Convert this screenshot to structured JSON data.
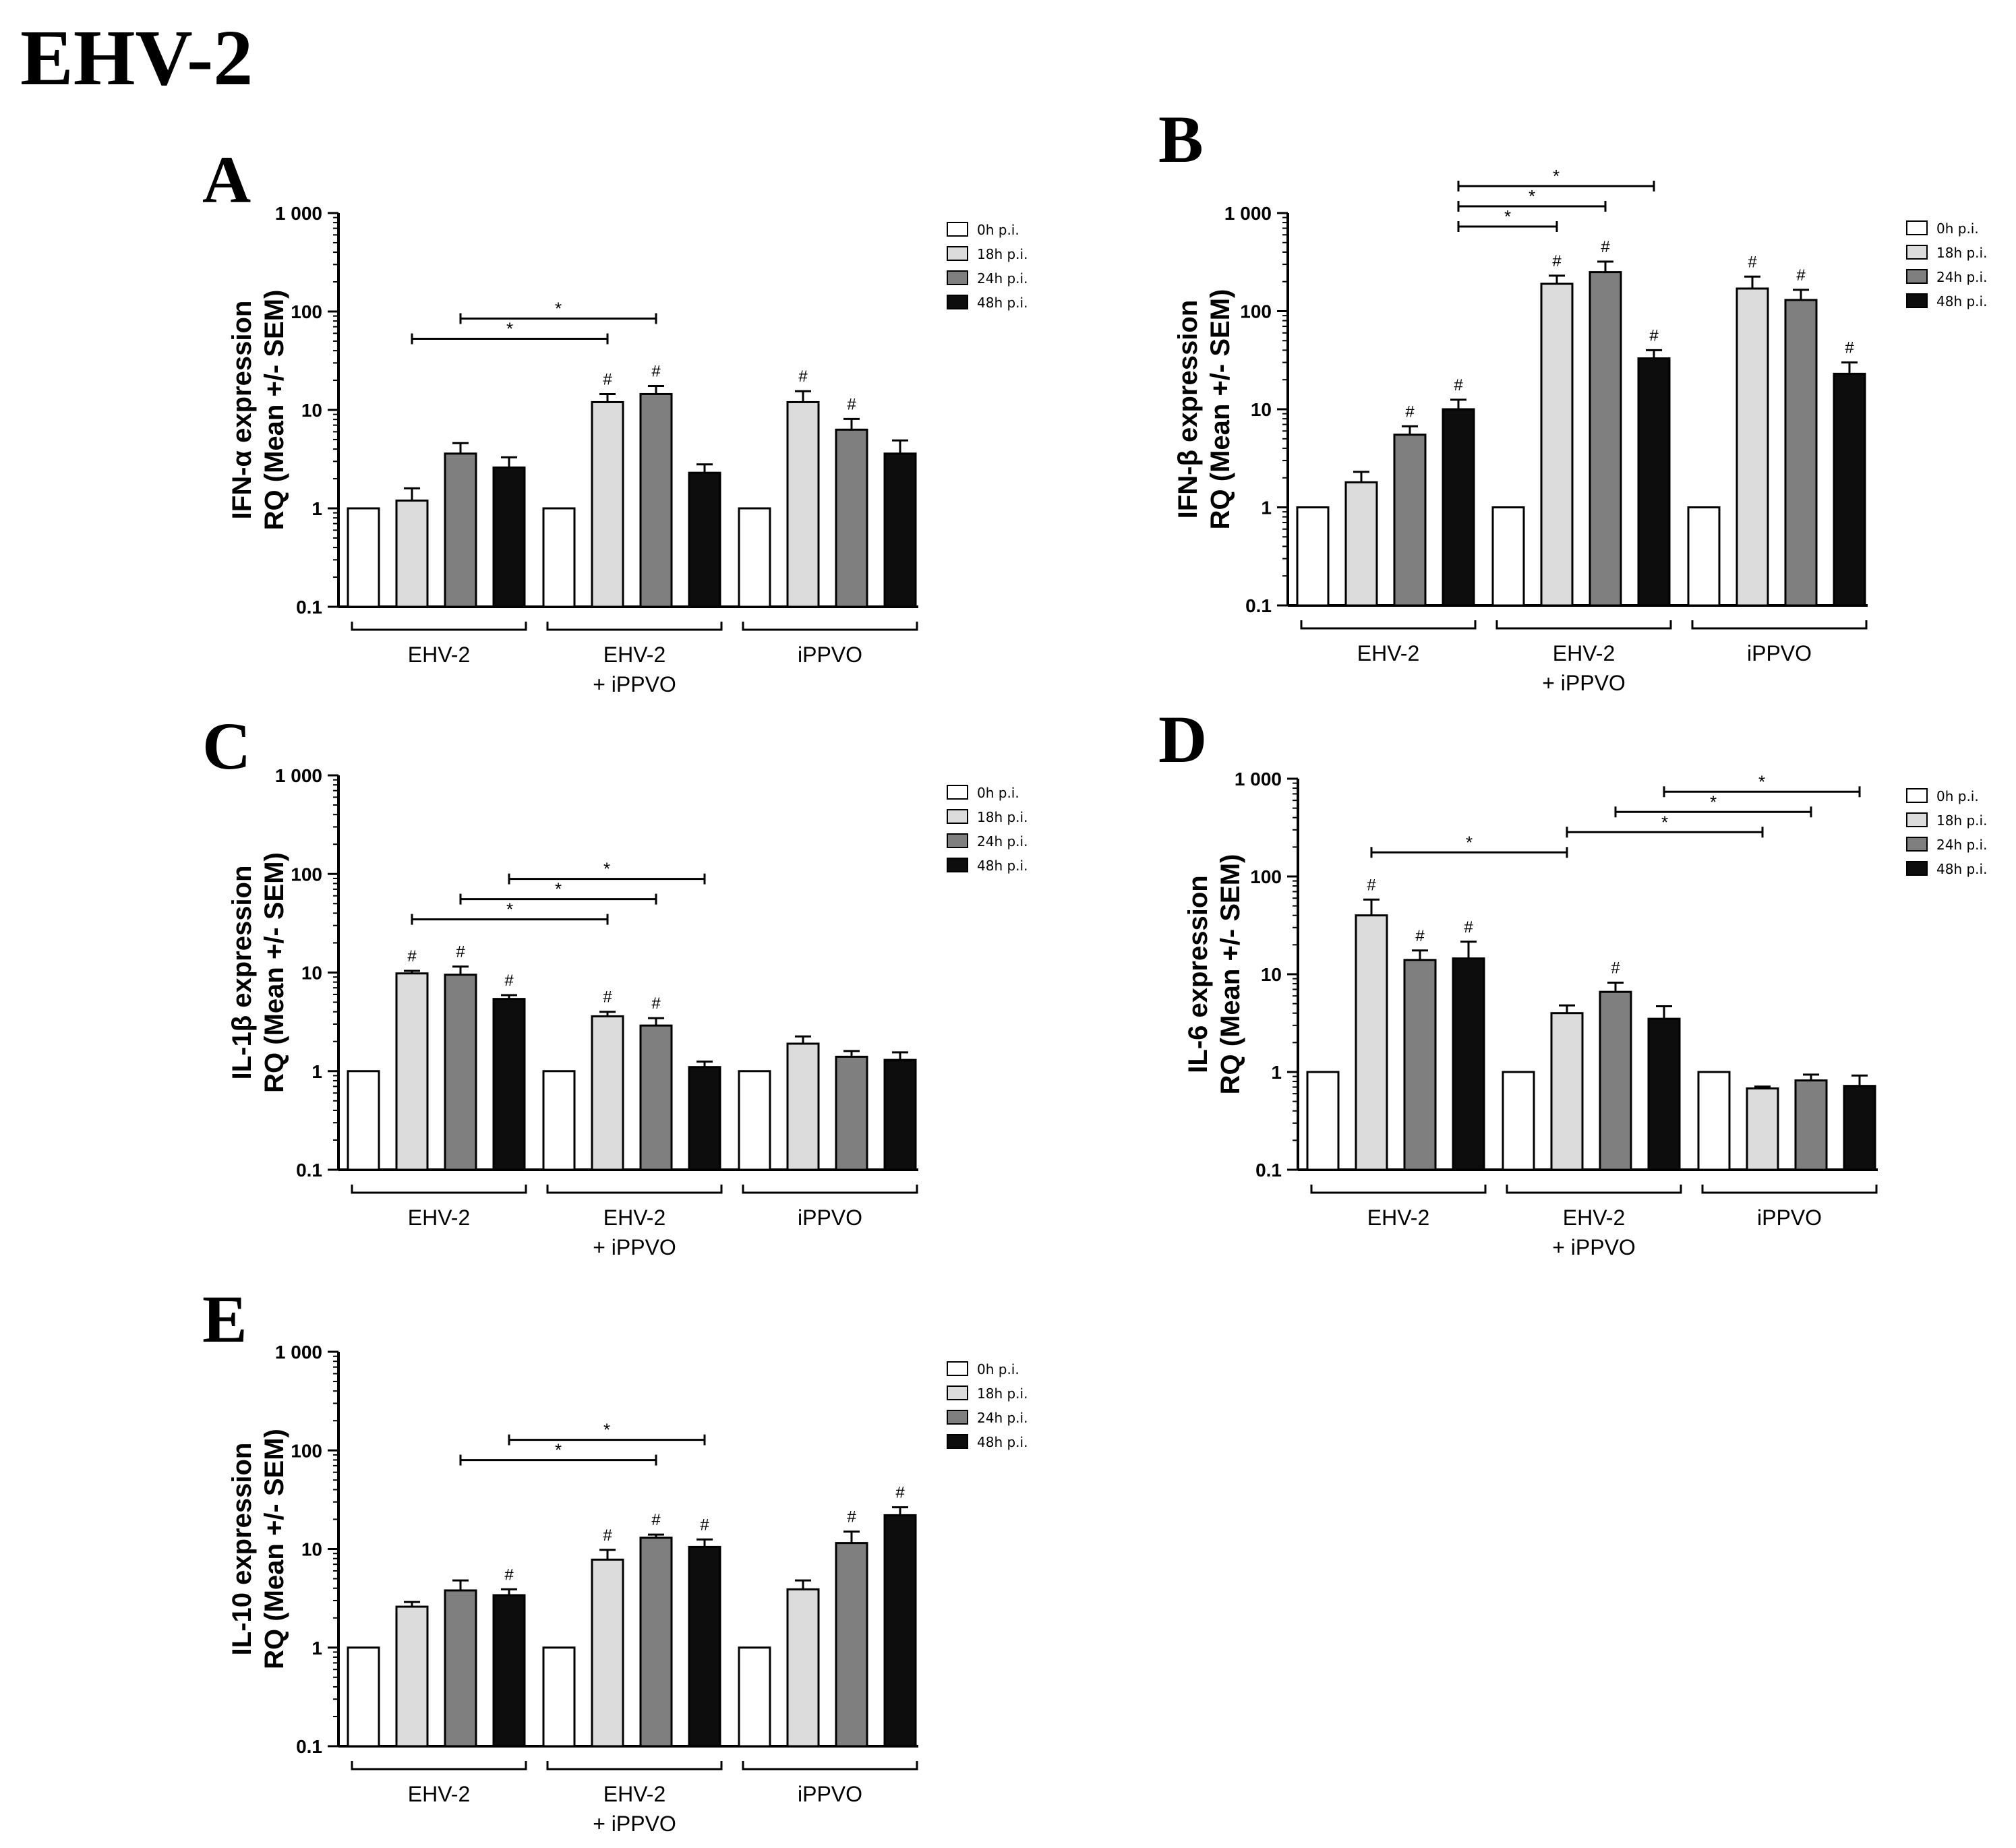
{
  "figure_title": "EHV-2",
  "chart_data": [
    {
      "type": "bar",
      "panel": "A",
      "ylabel": [
        "IFN-α expression",
        "RQ (Mean +/- SEM)"
      ],
      "yscale": "log",
      "ylim": [
        0.1,
        1000
      ],
      "yticks": [
        "0.1",
        "1",
        "10",
        "100",
        "1 000"
      ],
      "groups": [
        "EHV-2",
        "EHV-2\n+ iPPVO",
        "iPPVO"
      ],
      "series": [
        {
          "name": "0h p.i.",
          "color": "#ffffff",
          "values": [
            1,
            1,
            1
          ],
          "sem": [
            0,
            0,
            0
          ],
          "hash": [
            false,
            false,
            false
          ]
        },
        {
          "name": "18h p.i.",
          "color": "#dcdcdc",
          "values": [
            1.2,
            12,
            12
          ],
          "sem": [
            0.4,
            2.5,
            3.5
          ],
          "hash": [
            false,
            true,
            true
          ]
        },
        {
          "name": "24h p.i.",
          "color": "#7f7f7f",
          "values": [
            3.6,
            14.5,
            6.3
          ],
          "sem": [
            1.0,
            3.0,
            1.8
          ],
          "hash": [
            false,
            true,
            true
          ]
        },
        {
          "name": "48h p.i.",
          "color": "#0d0d0d",
          "values": [
            2.6,
            2.3,
            3.6
          ],
          "sem": [
            0.7,
            0.5,
            1.3
          ],
          "hash": [
            false,
            false,
            false
          ]
        }
      ],
      "comparisons": [
        {
          "from": [
            0,
            1
          ],
          "to": [
            1,
            1
          ],
          "label": "*"
        },
        {
          "from": [
            0,
            2
          ],
          "to": [
            1,
            2
          ],
          "label": "*"
        }
      ]
    },
    {
      "type": "bar",
      "panel": "B",
      "ylabel": [
        "IFN-β expression",
        "RQ (Mean +/- SEM)"
      ],
      "yscale": "log",
      "ylim": [
        0.1,
        1000
      ],
      "yticks": [
        "0.1",
        "1",
        "10",
        "100",
        "1 000"
      ],
      "groups": [
        "EHV-2",
        "EHV-2\n+ iPPVO",
        "iPPVO"
      ],
      "series": [
        {
          "name": "0h p.i.",
          "color": "#ffffff",
          "values": [
            1,
            1,
            1
          ],
          "sem": [
            0,
            0,
            0
          ],
          "hash": [
            false,
            false,
            false
          ]
        },
        {
          "name": "18h p.i.",
          "color": "#dcdcdc",
          "values": [
            1.8,
            190,
            170
          ],
          "sem": [
            0.5,
            40,
            55
          ],
          "hash": [
            false,
            true,
            true
          ]
        },
        {
          "name": "24h p.i.",
          "color": "#7f7f7f",
          "values": [
            5.5,
            250,
            130
          ],
          "sem": [
            1.2,
            70,
            35
          ],
          "hash": [
            true,
            true,
            true
          ]
        },
        {
          "name": "48h p.i.",
          "color": "#0d0d0d",
          "values": [
            10,
            33,
            23
          ],
          "sem": [
            2.5,
            7,
            7
          ],
          "hash": [
            true,
            true,
            true
          ]
        }
      ],
      "comparisons": [
        {
          "from": [
            0,
            3
          ],
          "to": [
            1,
            1
          ],
          "label": "*"
        },
        {
          "from": [
            0,
            3
          ],
          "to": [
            1,
            2
          ],
          "label": "*"
        },
        {
          "from": [
            0,
            3
          ],
          "to": [
            1,
            3
          ],
          "label": "*"
        }
      ]
    },
    {
      "type": "bar",
      "panel": "C",
      "ylabel": [
        "IL-1β expression",
        "RQ (Mean +/- SEM)"
      ],
      "yscale": "log",
      "ylim": [
        0.1,
        1000
      ],
      "yticks": [
        "0.1",
        "1",
        "10",
        "100",
        "1 000"
      ],
      "groups": [
        "EHV-2",
        "EHV-2\n+ iPPVO",
        "iPPVO"
      ],
      "series": [
        {
          "name": "0h p.i.",
          "color": "#ffffff",
          "values": [
            1,
            1,
            1
          ],
          "sem": [
            0,
            0,
            0
          ],
          "hash": [
            false,
            false,
            false
          ]
        },
        {
          "name": "18h p.i.",
          "color": "#dcdcdc",
          "values": [
            9.8,
            3.6,
            1.9
          ],
          "sem": [
            0.6,
            0.4,
            0.35
          ],
          "hash": [
            true,
            true,
            false
          ]
        },
        {
          "name": "24h p.i.",
          "color": "#7f7f7f",
          "values": [
            9.5,
            2.9,
            1.4
          ],
          "sem": [
            2.0,
            0.55,
            0.2
          ],
          "hash": [
            true,
            true,
            false
          ]
        },
        {
          "name": "48h p.i.",
          "color": "#0d0d0d",
          "values": [
            5.4,
            1.1,
            1.3
          ],
          "sem": [
            0.5,
            0.15,
            0.25
          ],
          "hash": [
            true,
            false,
            false
          ]
        }
      ],
      "comparisons": [
        {
          "from": [
            0,
            1
          ],
          "to": [
            1,
            1
          ],
          "label": "*"
        },
        {
          "from": [
            0,
            2
          ],
          "to": [
            1,
            2
          ],
          "label": "*"
        },
        {
          "from": [
            0,
            3
          ],
          "to": [
            1,
            3
          ],
          "label": "*"
        }
      ]
    },
    {
      "type": "bar",
      "panel": "D",
      "ylabel": [
        "IL-6 expression",
        "RQ (Mean +/- SEM)"
      ],
      "yscale": "log",
      "ylim": [
        0.1,
        1000
      ],
      "yticks": [
        "0.1",
        "1",
        "10",
        "100",
        "1 000"
      ],
      "groups": [
        "EHV-2",
        "EHV-2\n+ iPPVO",
        "iPPVO"
      ],
      "series": [
        {
          "name": "0h p.i.",
          "color": "#ffffff",
          "values": [
            1,
            1,
            1
          ],
          "sem": [
            0,
            0,
            0
          ],
          "hash": [
            false,
            false,
            false
          ]
        },
        {
          "name": "18h p.i.",
          "color": "#dcdcdc",
          "values": [
            40,
            4.0,
            0.68
          ],
          "sem": [
            18,
            0.8,
            0.03
          ],
          "hash": [
            true,
            false,
            false
          ]
        },
        {
          "name": "24h p.i.",
          "color": "#7f7f7f",
          "values": [
            14,
            6.6,
            0.82
          ],
          "sem": [
            3.5,
            1.6,
            0.12
          ],
          "hash": [
            true,
            true,
            false
          ]
        },
        {
          "name": "48h p.i.",
          "color": "#0d0d0d",
          "values": [
            14.5,
            3.5,
            0.72
          ],
          "sem": [
            7,
            1.2,
            0.2
          ],
          "hash": [
            true,
            false,
            false
          ]
        }
      ],
      "comparisons": [
        {
          "from": [
            0,
            1
          ],
          "to": [
            1,
            1
          ],
          "label": "*"
        },
        {
          "from": [
            1,
            1
          ],
          "to": [
            2,
            1
          ],
          "label": "*"
        },
        {
          "from": [
            1,
            2
          ],
          "to": [
            2,
            2
          ],
          "label": "*"
        },
        {
          "from": [
            1,
            3
          ],
          "to": [
            2,
            3
          ],
          "label": "*"
        }
      ]
    },
    {
      "type": "bar",
      "panel": "E",
      "ylabel": [
        "IL-10 expression",
        "RQ (Mean +/- SEM)"
      ],
      "yscale": "log",
      "ylim": [
        0.1,
        1000
      ],
      "yticks": [
        "0.1",
        "1",
        "10",
        "100",
        "1 000"
      ],
      "groups": [
        "EHV-2",
        "EHV-2\n+ iPPVO",
        "iPPVO"
      ],
      "series": [
        {
          "name": "0h p.i.",
          "color": "#ffffff",
          "values": [
            1,
            1,
            1
          ],
          "sem": [
            0,
            0,
            0
          ],
          "hash": [
            false,
            false,
            false
          ]
        },
        {
          "name": "18h p.i.",
          "color": "#dcdcdc",
          "values": [
            2.6,
            7.8,
            3.9
          ],
          "sem": [
            0.3,
            2.0,
            0.9
          ],
          "hash": [
            false,
            true,
            false
          ]
        },
        {
          "name": "24h p.i.",
          "color": "#7f7f7f",
          "values": [
            3.8,
            13,
            11.5
          ],
          "sem": [
            1.0,
            1.0,
            3.5
          ],
          "hash": [
            false,
            true,
            true
          ]
        },
        {
          "name": "48h p.i.",
          "color": "#0d0d0d",
          "values": [
            3.4,
            10.5,
            22
          ],
          "sem": [
            0.5,
            2.0,
            4.5
          ],
          "hash": [
            true,
            true,
            true
          ]
        }
      ],
      "comparisons": [
        {
          "from": [
            0,
            2
          ],
          "to": [
            1,
            2
          ],
          "label": "*"
        },
        {
          "from": [
            0,
            3
          ],
          "to": [
            1,
            3
          ],
          "label": "*"
        }
      ]
    }
  ]
}
